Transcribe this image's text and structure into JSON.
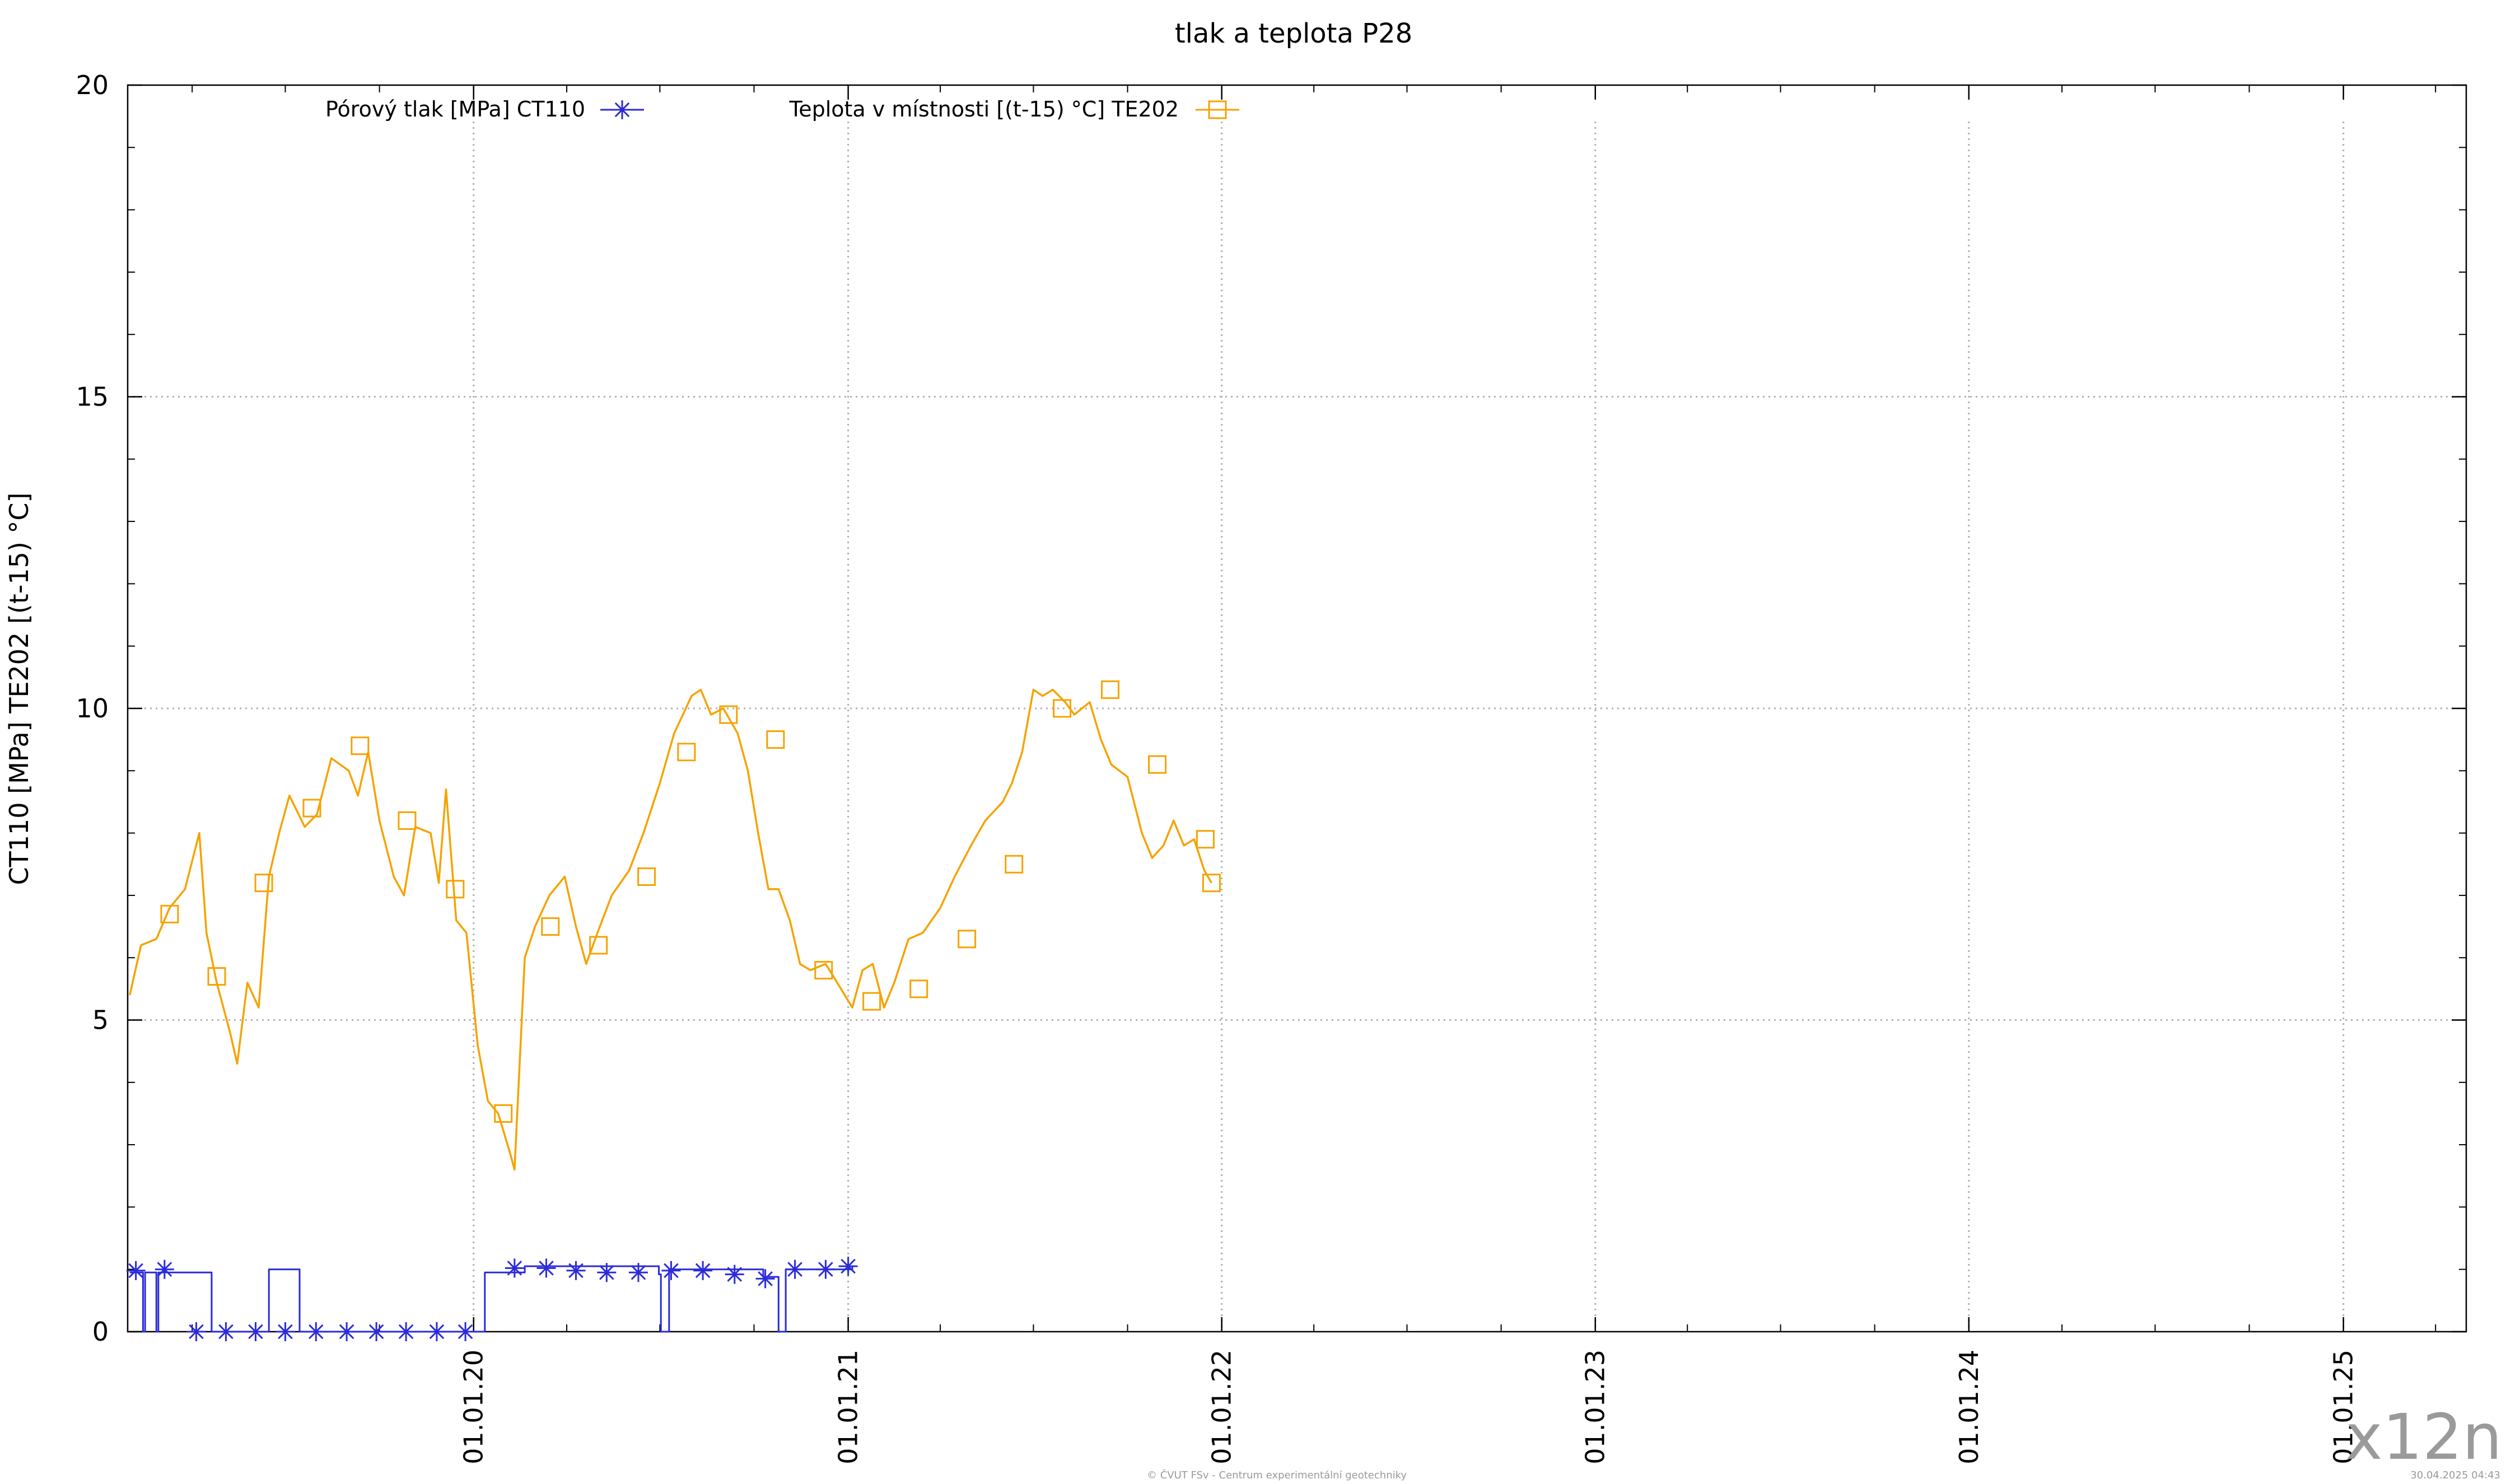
{
  "chart_data": {
    "type": "line",
    "title": "tlak a teplota P28",
    "ylabel": "CT110 [MPa] TE202 [(t-15) °C]",
    "xlabel": "",
    "ylim": [
      0,
      20
    ],
    "yticks": [
      0,
      5,
      10,
      15,
      20
    ],
    "xlim": [
      "2019-01-28",
      "2025-05-01"
    ],
    "xticks": [
      {
        "date": "2020-01-01",
        "label": "01.01.20"
      },
      {
        "date": "2021-01-01",
        "label": "01.01.21"
      },
      {
        "date": "2022-01-01",
        "label": "01.01.22"
      },
      {
        "date": "2023-01-01",
        "label": "01.01.23"
      },
      {
        "date": "2024-01-01",
        "label": "01.01.24"
      },
      {
        "date": "2025-01-01",
        "label": "01.01.25"
      }
    ],
    "grid": true,
    "legend_position": "top-left",
    "series": [
      {
        "name": "Pórový tlak [MPa] CT110",
        "color": "#2b2bd9",
        "marker": "asterisk",
        "step": true,
        "points": [
          [
            "2019-01-30",
            0.95
          ],
          [
            "2019-02-12",
            0.0
          ],
          [
            "2019-02-14",
            0.95
          ],
          [
            "2019-02-25",
            0.0
          ],
          [
            "2019-02-27",
            0.95
          ],
          [
            "2019-04-20",
            0.0
          ],
          [
            "2019-06-15",
            1.0
          ],
          [
            "2019-07-15",
            0.0
          ],
          [
            "2020-01-12",
            0.95
          ],
          [
            "2020-02-20",
            1.05
          ],
          [
            "2020-06-30",
            0.92
          ],
          [
            "2020-07-02",
            0.0
          ],
          [
            "2020-07-10",
            1.0
          ],
          [
            "2020-10-10",
            0.88
          ],
          [
            "2020-10-25",
            0.0
          ],
          [
            "2020-11-01",
            1.0
          ],
          [
            "2021-01-05",
            1.05
          ]
        ],
        "markers": [
          [
            "2019-02-05",
            0.98
          ],
          [
            "2019-03-05",
            1.0
          ],
          [
            "2019-04-05",
            0.0
          ],
          [
            "2019-05-04",
            0.0
          ],
          [
            "2019-06-02",
            0.0
          ],
          [
            "2019-07-01",
            0.0
          ],
          [
            "2019-07-31",
            0.0
          ],
          [
            "2019-08-30",
            0.0
          ],
          [
            "2019-09-28",
            0.0
          ],
          [
            "2019-10-27",
            0.0
          ],
          [
            "2019-11-26",
            0.0
          ],
          [
            "2019-12-24",
            0.0
          ],
          [
            "2020-02-10",
            1.02
          ],
          [
            "2020-03-12",
            1.02
          ],
          [
            "2020-04-10",
            0.98
          ],
          [
            "2020-05-10",
            0.95
          ],
          [
            "2020-06-10",
            0.95
          ],
          [
            "2020-07-12",
            0.98
          ],
          [
            "2020-08-12",
            0.98
          ],
          [
            "2020-09-12",
            0.92
          ],
          [
            "2020-10-12",
            0.85
          ],
          [
            "2020-11-10",
            1.0
          ],
          [
            "2020-12-10",
            1.0
          ],
          [
            "2021-01-01",
            1.05
          ]
        ]
      },
      {
        "name": "Teplota v místnosti [(t-15) °C] TE202",
        "color": "#f5a300",
        "marker": "square",
        "points": [
          [
            "2019-01-30",
            5.4
          ],
          [
            "2019-02-10",
            6.2
          ],
          [
            "2019-02-25",
            6.3
          ],
          [
            "2019-03-10",
            6.8
          ],
          [
            "2019-03-25",
            7.1
          ],
          [
            "2019-04-08",
            8.0
          ],
          [
            "2019-04-15",
            6.4
          ],
          [
            "2019-04-25",
            5.6
          ],
          [
            "2019-05-08",
            4.8
          ],
          [
            "2019-05-15",
            4.3
          ],
          [
            "2019-05-25",
            5.6
          ],
          [
            "2019-06-05",
            5.2
          ],
          [
            "2019-06-15",
            7.3
          ],
          [
            "2019-06-25",
            8.0
          ],
          [
            "2019-07-05",
            8.6
          ],
          [
            "2019-07-20",
            8.1
          ],
          [
            "2019-08-01",
            8.3
          ],
          [
            "2019-08-15",
            9.2
          ],
          [
            "2019-09-01",
            9.0
          ],
          [
            "2019-09-10",
            8.6
          ],
          [
            "2019-09-20",
            9.3
          ],
          [
            "2019-10-01",
            8.2
          ],
          [
            "2019-10-15",
            7.3
          ],
          [
            "2019-10-25",
            7.0
          ],
          [
            "2019-11-05",
            8.1
          ],
          [
            "2019-11-20",
            8.0
          ],
          [
            "2019-11-28",
            7.2
          ],
          [
            "2019-12-05",
            8.7
          ],
          [
            "2019-12-15",
            6.6
          ],
          [
            "2019-12-25",
            6.4
          ],
          [
            "2020-01-05",
            4.6
          ],
          [
            "2020-01-15",
            3.7
          ],
          [
            "2020-01-25",
            3.5
          ],
          [
            "2020-02-05",
            2.9
          ],
          [
            "2020-02-10",
            2.6
          ],
          [
            "2020-02-20",
            6.0
          ],
          [
            "2020-03-01",
            6.5
          ],
          [
            "2020-03-15",
            7.0
          ],
          [
            "2020-03-30",
            7.3
          ],
          [
            "2020-04-10",
            6.5
          ],
          [
            "2020-04-20",
            5.9
          ],
          [
            "2020-05-01",
            6.4
          ],
          [
            "2020-05-15",
            7.0
          ],
          [
            "2020-06-01",
            7.4
          ],
          [
            "2020-06-15",
            8.0
          ],
          [
            "2020-07-01",
            8.8
          ],
          [
            "2020-07-15",
            9.6
          ],
          [
            "2020-08-01",
            10.2
          ],
          [
            "2020-08-10",
            10.3
          ],
          [
            "2020-08-20",
            9.9
          ],
          [
            "2020-09-01",
            10.0
          ],
          [
            "2020-09-15",
            9.6
          ],
          [
            "2020-09-25",
            9.0
          ],
          [
            "2020-10-05",
            8.0
          ],
          [
            "2020-10-15",
            7.1
          ],
          [
            "2020-10-25",
            7.1
          ],
          [
            "2020-11-05",
            6.6
          ],
          [
            "2020-11-15",
            5.9
          ],
          [
            "2020-11-25",
            5.8
          ],
          [
            "2020-12-10",
            5.9
          ],
          [
            "2020-12-25",
            5.5
          ],
          [
            "2021-01-05",
            5.2
          ],
          [
            "2021-01-15",
            5.8
          ],
          [
            "2021-01-25",
            5.9
          ],
          [
            "2021-02-05",
            5.2
          ],
          [
            "2021-02-15",
            5.6
          ],
          [
            "2021-03-01",
            6.3
          ],
          [
            "2021-03-15",
            6.4
          ],
          [
            "2021-04-01",
            6.8
          ],
          [
            "2021-04-15",
            7.3
          ],
          [
            "2021-05-01",
            7.8
          ],
          [
            "2021-05-15",
            8.2
          ],
          [
            "2021-06-01",
            8.5
          ],
          [
            "2021-06-10",
            8.8
          ],
          [
            "2021-06-20",
            9.3
          ],
          [
            "2021-07-01",
            10.3
          ],
          [
            "2021-07-10",
            10.2
          ],
          [
            "2021-07-20",
            10.3
          ],
          [
            "2021-08-01",
            10.1
          ],
          [
            "2021-08-10",
            9.9
          ],
          [
            "2021-08-25",
            10.1
          ],
          [
            "2021-09-05",
            9.5
          ],
          [
            "2021-09-15",
            9.1
          ],
          [
            "2021-10-01",
            8.9
          ],
          [
            "2021-10-15",
            8.0
          ],
          [
            "2021-10-25",
            7.6
          ],
          [
            "2021-11-05",
            7.8
          ],
          [
            "2021-11-15",
            8.2
          ],
          [
            "2021-11-25",
            7.8
          ],
          [
            "2021-12-05",
            7.9
          ],
          [
            "2021-12-15",
            7.4
          ],
          [
            "2021-12-22",
            7.2
          ]
        ],
        "markers": [
          [
            "2019-03-10",
            6.7
          ],
          [
            "2019-04-25",
            5.7
          ],
          [
            "2019-06-10",
            7.2
          ],
          [
            "2019-07-27",
            8.4
          ],
          [
            "2019-09-12",
            9.4
          ],
          [
            "2019-10-28",
            8.2
          ],
          [
            "2019-12-14",
            7.1
          ],
          [
            "2020-01-30",
            3.5
          ],
          [
            "2020-03-16",
            6.5
          ],
          [
            "2020-05-02",
            6.2
          ],
          [
            "2020-06-18",
            7.3
          ],
          [
            "2020-07-27",
            9.3
          ],
          [
            "2020-09-06",
            9.9
          ],
          [
            "2020-10-22",
            9.5
          ],
          [
            "2020-12-08",
            5.8
          ],
          [
            "2021-01-24",
            5.3
          ],
          [
            "2021-03-11",
            5.5
          ],
          [
            "2021-04-27",
            6.3
          ],
          [
            "2021-06-12",
            7.5
          ],
          [
            "2021-07-29",
            10.0
          ],
          [
            "2021-09-14",
            10.3
          ],
          [
            "2021-10-30",
            9.1
          ],
          [
            "2021-12-16",
            7.9
          ],
          [
            "2021-12-22",
            7.2
          ]
        ]
      }
    ]
  },
  "footer": {
    "copyright": "© ČVUT FSv - Centrum experimentální geotechniky",
    "timestamp": "30.04.2025 04:43",
    "watermark": "x12n"
  }
}
